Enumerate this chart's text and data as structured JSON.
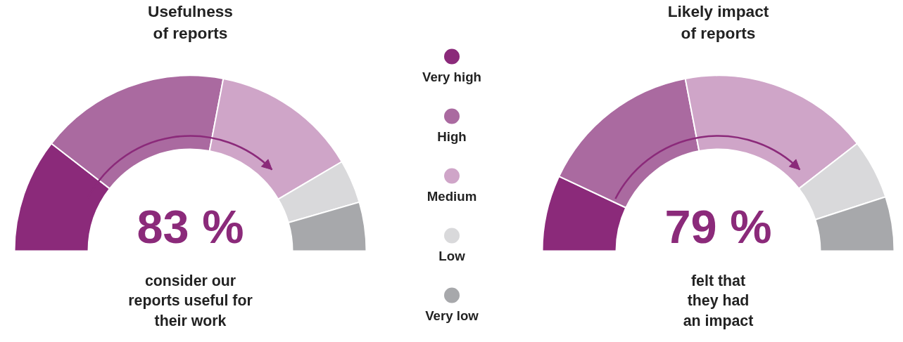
{
  "chart_data": {
    "type": "donut",
    "categories": [
      "Very high",
      "High",
      "Medium",
      "Low",
      "Very low"
    ],
    "colors": [
      "#8b2a7a",
      "#aa6aa0",
      "#cfa5c8",
      "#d9d9db",
      "#a7a8ab"
    ],
    "legend": "right",
    "series": [
      {
        "name": "Usefulness\nof reports",
        "values": [
          21,
          35,
          27,
          8,
          9
        ]
      },
      {
        "name": "Likely impact\nof reports",
        "values": [
          14,
          30,
          35,
          11,
          10
        ]
      }
    ],
    "annotations": [
      "83 %",
      "consider our\nreports useful for\ntheir work",
      "79 %",
      "felt that\nthey had\nan impact"
    ]
  }
}
